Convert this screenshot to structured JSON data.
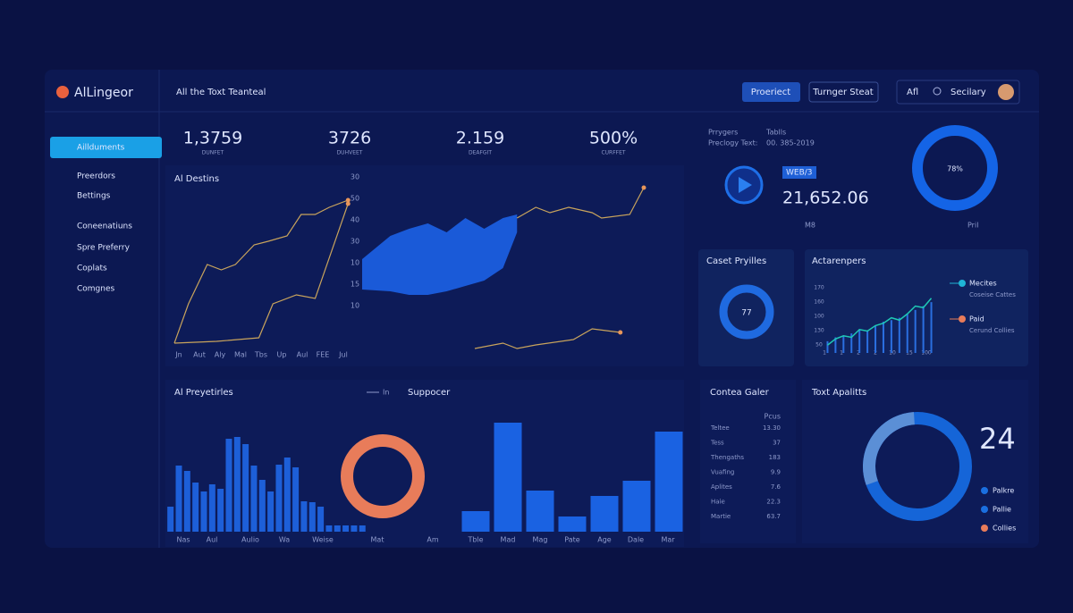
{
  "header": {
    "brand": "AlLingeor",
    "title": "All the Toxt Teanteal",
    "buttons": [
      "Proeriect",
      "Turnger Steat"
    ],
    "filter": "Afl",
    "user": "Secilary"
  },
  "sidebar": {
    "items": [
      "Aillduments",
      "Preerdors",
      "Bettings",
      "Coneenatiuns",
      "Spre Preferry",
      "Coplats",
      "Comgnes"
    ],
    "active": 0
  },
  "stats": [
    {
      "value": "1,3759",
      "label": "DUNFET"
    },
    {
      "value": "3726",
      "label": "DUHVEET"
    },
    {
      "value": "2.159",
      "label": "DEAFGIT"
    },
    {
      "value": "500%",
      "label": "CURFFET"
    }
  ],
  "trend_chart": {
    "title": "Al Destins",
    "axis_labels": [
      "30",
      "50",
      "40",
      "30",
      "10",
      "15",
      "10"
    ],
    "x_labels": [
      "Jn",
      "Aut",
      "Aly",
      "Mal",
      "Tbs",
      "Up",
      "Aul",
      "FEE",
      "Jul"
    ],
    "xlim": [
      0,
      100
    ],
    "ylim": [
      0,
      100
    ],
    "lines": [
      {
        "color": "#c9a45c",
        "x": [
          0,
          3,
          7,
          10,
          13,
          17,
          20,
          24,
          27,
          30,
          33,
          37
        ],
        "y": [
          8,
          30,
          52,
          49,
          52,
          63,
          65,
          68,
          80,
          80,
          84,
          88
        ]
      },
      {
        "color": "#c9a45c",
        "x": [
          0,
          9,
          18,
          21,
          26,
          30,
          37
        ],
        "y": [
          8,
          9,
          11,
          30,
          35,
          33,
          86
        ]
      },
      {
        "color": "#c9a45c",
        "x": [
          73,
          77,
          80,
          84,
          89,
          91,
          97,
          100
        ],
        "y": [
          78,
          84,
          81,
          84,
          81,
          78,
          80,
          95
        ]
      },
      {
        "color": "#c9a45c",
        "x": [
          64,
          70,
          73,
          77,
          85,
          89,
          95
        ],
        "y": [
          5,
          8,
          5,
          7,
          10,
          16,
          14
        ]
      }
    ],
    "area": {
      "color": "#1a5ad8",
      "x": [
        40,
        46,
        50,
        54,
        58,
        62,
        66,
        70,
        73
      ],
      "upper": [
        55,
        68,
        72,
        75,
        70,
        78,
        72,
        78,
        80
      ],
      "lower": [
        38,
        37,
        35,
        35,
        37,
        40,
        43,
        50,
        70
      ]
    }
  },
  "summary": {
    "labels": [
      "Prrygers",
      "Tablls",
      "Preclogy Text:",
      "00. 385-2019"
    ],
    "badge": "WEB/3",
    "amount": "21,652.06",
    "footer": [
      "M8",
      "Pril"
    ],
    "ring_label": "78%"
  },
  "profile_card": {
    "title": "Caset Pryilles",
    "value": "77"
  },
  "mini_chart": {
    "title": "Actarenpers",
    "y_labels": [
      "170",
      "160",
      "100",
      "130",
      "50"
    ],
    "x_labels": [
      "1",
      "1",
      "2",
      "2",
      "10",
      "15",
      "100"
    ],
    "ylim": [
      0,
      80
    ],
    "line": {
      "color": "#1fc9b5",
      "values": [
        10,
        18,
        22,
        20,
        30,
        28,
        35,
        38,
        45,
        42,
        50,
        60,
        58,
        70
      ]
    },
    "bars": {
      "color": "#2a6fe0",
      "values": [
        15,
        20,
        22,
        25,
        30,
        28,
        35,
        40,
        42,
        45,
        50,
        55,
        60,
        65
      ]
    },
    "legend": [
      {
        "name": "Mecites",
        "sub": "Coseise Cattes",
        "color": "#1fb5d6"
      },
      {
        "name": "Paid",
        "sub": "Cerund Collies",
        "color": "#e87c5a"
      }
    ]
  },
  "bars_chart": {
    "title": "Al Preyetirles",
    "legend": [
      "In",
      "Suppocer"
    ],
    "ylim": [
      0,
      130
    ],
    "groups": [
      {
        "color": "#1d5fd8",
        "values": [
          28,
          74,
          68,
          55,
          45,
          53,
          48,
          104,
          106,
          98,
          74,
          58,
          45,
          75,
          83,
          72,
          34,
          33,
          28,
          7,
          7,
          7,
          7,
          7
        ]
      },
      {
        "color": "#1a62e2",
        "values": [
          23,
          122,
          46,
          17,
          40,
          57,
          112
        ]
      }
    ],
    "x_labels": [
      "Nas",
      "Aul",
      "Aulio",
      "Wa",
      "Weise",
      "Mat",
      "Am",
      "Tble",
      "Mad",
      "Mag",
      "Pate",
      "Age",
      "Dale",
      "Mar"
    ]
  },
  "table": {
    "title": "Contea Galer",
    "header": "Pcus",
    "rows": [
      [
        "Teltee",
        "13.30"
      ],
      [
        "Tess",
        "37"
      ],
      [
        "Thengaths",
        "183"
      ],
      [
        "Vuafing",
        "9.9"
      ],
      [
        "Aplites",
        "7.6"
      ],
      [
        "Haie",
        "22.3"
      ],
      [
        "Martie",
        "63.7"
      ]
    ]
  },
  "donut": {
    "title": "Toxt Apalitts",
    "value": "24",
    "legend": [
      {
        "name": "Palkre",
        "color": "#1a6fe0"
      },
      {
        "name": "Pallie",
        "color": "#1a6fe0"
      },
      {
        "name": "Collies",
        "color": "#e87c5a"
      }
    ]
  }
}
